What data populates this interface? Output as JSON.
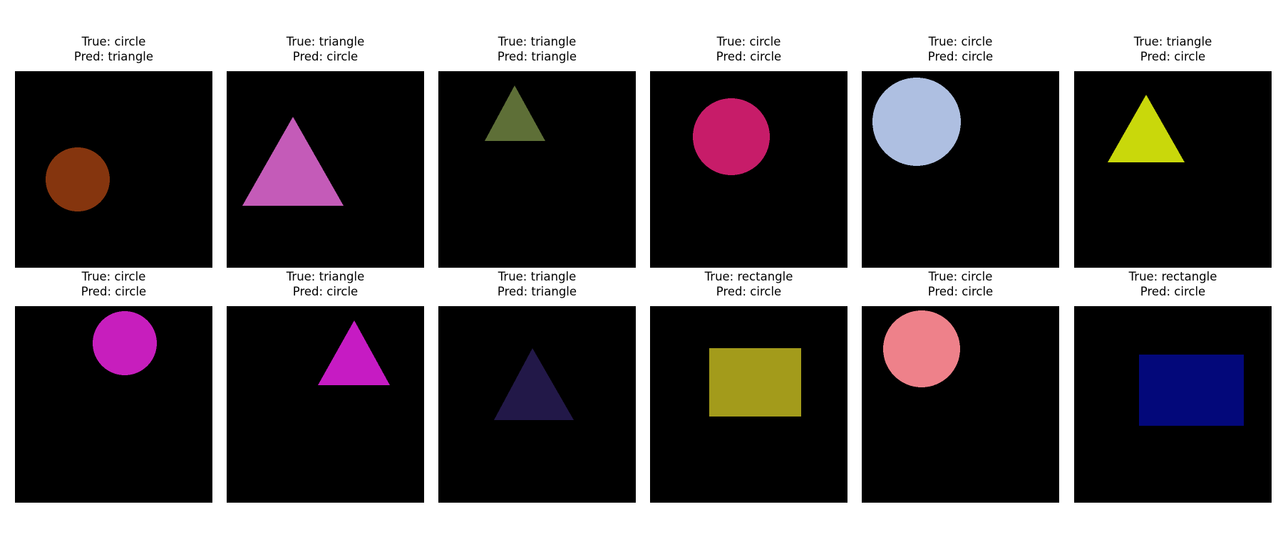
{
  "panels": [
    {
      "true_text": "True: circle",
      "pred_text": "Pred: triangle",
      "shape": "circle",
      "color": "#85350e"
    },
    {
      "true_text": "True: triangle",
      "pred_text": "Pred: circle",
      "shape": "triangle",
      "color": "#c45bb8"
    },
    {
      "true_text": "True: triangle",
      "pred_text": "Pred: triangle",
      "shape": "triangle",
      "color": "#5e6f37"
    },
    {
      "true_text": "True: circle",
      "pred_text": "Pred: circle",
      "shape": "circle",
      "color": "#c71c69"
    },
    {
      "true_text": "True: circle",
      "pred_text": "Pred: circle",
      "shape": "circle",
      "color": "#aebfe1"
    },
    {
      "true_text": "True: triangle",
      "pred_text": "Pred: circle",
      "shape": "triangle",
      "color": "#c9d80b"
    },
    {
      "true_text": "True: circle",
      "pred_text": "Pred: circle",
      "shape": "circle",
      "color": "#c71ebd"
    },
    {
      "true_text": "True: triangle",
      "pred_text": "Pred: circle",
      "shape": "triangle",
      "color": "#c61bc3"
    },
    {
      "true_text": "True: triangle",
      "pred_text": "Pred: triangle",
      "shape": "triangle",
      "color": "#221848"
    },
    {
      "true_text": "True: rectangle",
      "pred_text": "Pred: circle",
      "shape": "rectangle",
      "color": "#a39b1b"
    },
    {
      "true_text": "True: circle",
      "pred_text": "Pred: circle",
      "shape": "circle",
      "color": "#ee818a"
    },
    {
      "true_text": "True: rectangle",
      "pred_text": "Pred: circle",
      "shape": "rectangle",
      "color": "#03087a"
    }
  ]
}
